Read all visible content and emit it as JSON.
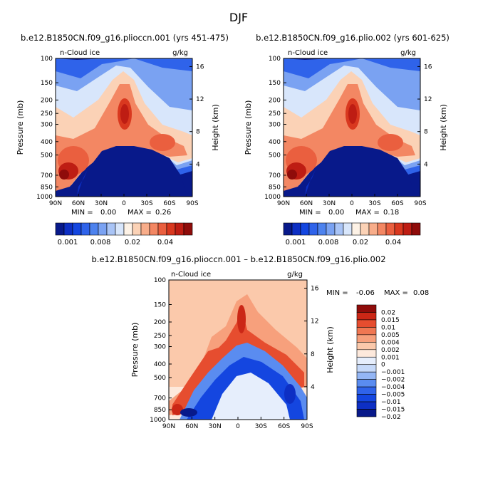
{
  "figure": {
    "season_title": "DJF"
  },
  "colors": {
    "abs_palette": [
      "#08198a",
      "#0d2fc4",
      "#1446e0",
      "#2f63ea",
      "#4d82ee",
      "#7aa2f2",
      "#a9c4f6",
      "#d8e6fb",
      "#fdf2e6",
      "#fbd2b6",
      "#f8ad8a",
      "#f38763",
      "#ea5f3f",
      "#d9381f",
      "#be1d13",
      "#8f0c0a"
    ],
    "diff_palette": [
      "#08198a",
      "#0d2fc4",
      "#1446e0",
      "#2f63ea",
      "#5a8cf0",
      "#94b6f5",
      "#c6d9f9",
      "#e6eefc",
      "#fde9dc",
      "#fbc9ab",
      "#f7a07c",
      "#f07752",
      "#e64d2f",
      "#cb2716",
      "#8f0c0a"
    ]
  },
  "chart_data": [
    {
      "id": "panel-left",
      "type": "heatmap",
      "title": "b.e12.B1850CN.f09_g16.plioccn.001 (yrs 451-475)",
      "variable": "n-Cloud ice",
      "units": "g/kg",
      "xlabel": "",
      "ylabel": "Pressure (mb)",
      "y2label": "Height (km)",
      "x_ticks": [
        "90N",
        "60N",
        "30N",
        "0",
        "30S",
        "60S",
        "90S"
      ],
      "x_tick_values": [
        90,
        60,
        30,
        0,
        -30,
        -60,
        -90
      ],
      "y_ticks": [
        "100",
        "150",
        "200",
        "250",
        "300",
        "400",
        "500",
        "700",
        "850",
        "1000"
      ],
      "y_tick_values": [
        100,
        150,
        200,
        250,
        300,
        400,
        500,
        700,
        850,
        1000
      ],
      "y2_ticks": [
        "16",
        "12",
        "8",
        "4"
      ],
      "y2_tick_values": [
        16,
        12,
        8,
        4
      ],
      "xlim": [
        90,
        -90
      ],
      "ylim": [
        1000,
        100
      ],
      "min_label": "MIN =",
      "min_value": "0.00",
      "max_label": "MAX =",
      "max_value": "0.26",
      "bar_labels": [
        "0.001",
        "0.008",
        "0.02",
        "0.04"
      ]
    },
    {
      "id": "panel-right",
      "type": "heatmap",
      "title": "b.e12.B1850CN.f09_g16.plio.002 (yrs 601-625)",
      "variable": "n-Cloud ice",
      "units": "g/kg",
      "xlabel": "",
      "ylabel": "Pressure (mb)",
      "y2label": "Height (km)",
      "x_ticks": [
        "90N",
        "60N",
        "30N",
        "0",
        "30S",
        "60S",
        "90S"
      ],
      "x_tick_values": [
        90,
        60,
        30,
        0,
        -30,
        -60,
        -90
      ],
      "y_ticks": [
        "100",
        "150",
        "200",
        "250",
        "300",
        "400",
        "500",
        "700",
        "850",
        "1000"
      ],
      "y_tick_values": [
        100,
        150,
        200,
        250,
        300,
        400,
        500,
        700,
        850,
        1000
      ],
      "y2_ticks": [
        "16",
        "12",
        "8",
        "4"
      ],
      "y2_tick_values": [
        16,
        12,
        8,
        4
      ],
      "xlim": [
        90,
        -90
      ],
      "ylim": [
        1000,
        100
      ],
      "min_label": "MIN =",
      "min_value": "0.00",
      "max_label": "MAX =",
      "max_value": "0.18",
      "bar_labels": [
        "0.001",
        "0.008",
        "0.02",
        "0.04"
      ]
    },
    {
      "id": "panel-diff",
      "type": "heatmap",
      "title": "b.e12.B1850CN.f09_g16.plioccn.001 – b.e12.B1850CN.f09_g16.plio.002",
      "variable": "n-Cloud ice",
      "units": "g/kg",
      "xlabel": "",
      "ylabel": "Pressure (mb)",
      "y2label": "Height (km)",
      "x_ticks": [
        "90N",
        "60N",
        "30N",
        "0",
        "30S",
        "60S",
        "90S"
      ],
      "x_tick_values": [
        90,
        60,
        30,
        0,
        -30,
        -60,
        -90
      ],
      "y_ticks": [
        "100",
        "150",
        "200",
        "250",
        "300",
        "400",
        "500",
        "700",
        "850",
        "1000"
      ],
      "y_tick_values": [
        100,
        150,
        200,
        250,
        300,
        400,
        500,
        700,
        850,
        1000
      ],
      "y2_ticks": [
        "16",
        "12",
        "8",
        "4"
      ],
      "y2_tick_values": [
        16,
        12,
        8,
        4
      ],
      "xlim": [
        90,
        -90
      ],
      "ylim": [
        1000,
        100
      ],
      "min_label": "MIN =",
      "min_value": "-0.06",
      "max_label": "MAX =",
      "max_value": "0.08",
      "bar_labels": [
        "0.02",
        "0.015",
        "0.01",
        "0.005",
        "0.004",
        "0.002",
        "0.001",
        "0",
        "−0.001",
        "−0.002",
        "−0.004",
        "−0.005",
        "−0.01",
        "−0.015",
        "−0.02"
      ]
    }
  ]
}
